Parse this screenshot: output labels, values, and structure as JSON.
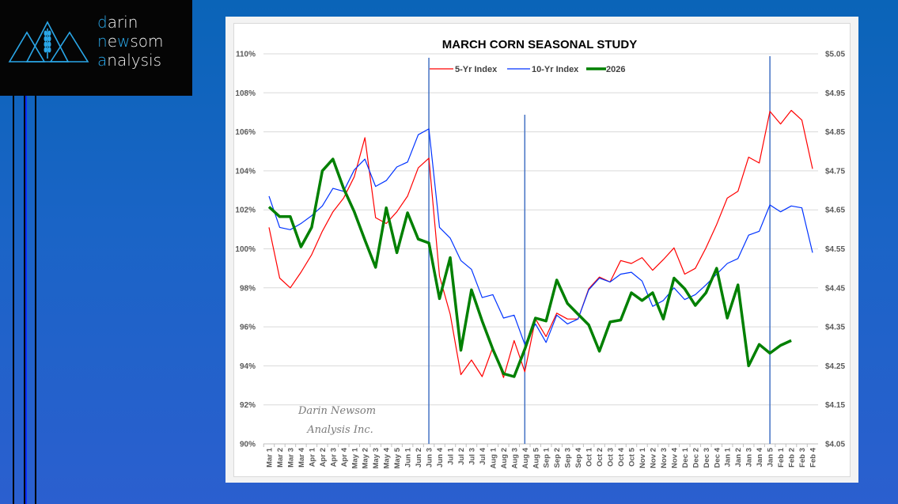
{
  "logo": {
    "line1": {
      "accent": "d",
      "rest": "arin"
    },
    "line2": {
      "accent1": "n",
      "mid1": "e",
      "accent2": "w",
      "rest": "som"
    },
    "line3": {
      "accent": "a",
      "rest": "nalysis"
    },
    "icon": "mountains-wheat-icon",
    "accent_color": "#2aa7e8"
  },
  "colors": {
    "five_yr": "#ff0000",
    "ten_yr": "#0033ff",
    "y2026": "#008000",
    "marker_line": "#4472c4"
  },
  "chart_data": {
    "type": "line",
    "title": "MARCH CORN SEASONAL STUDY",
    "xlabel": "",
    "ylabel": "",
    "ylim": [
      90,
      110
    ],
    "y_ticks": [
      "110%",
      "108%",
      "106%",
      "104%",
      "102%",
      "100%",
      "98%",
      "96%",
      "94%",
      "92%",
      "90%"
    ],
    "y2lim": [
      4.05,
      5.05
    ],
    "y2_ticks": [
      "$5.05",
      "$4.95",
      "$4.85",
      "$4.75",
      "$4.65",
      "$4.55",
      "$4.45",
      "$4.35",
      "$4.25",
      "$4.15",
      "$4.05"
    ],
    "grid": true,
    "legend_position": "top-center",
    "categories": [
      "Mar 1",
      "Mar 2",
      "Mar 3",
      "Mar 4",
      "Apr 1",
      "Apr 2",
      "Apr 3",
      "Apr 4",
      "May 1",
      "May 2",
      "May 3",
      "May 4",
      "May 5",
      "Jun 1",
      "Jun 2",
      "Jun 3",
      "Jun 4",
      "Jul 1",
      "Jul 2",
      "Jul 3",
      "Jul 4",
      "Aug 1",
      "Aug 2",
      "Aug 3",
      "Aug 4",
      "Aug 5",
      "Sep 1",
      "Sep 2",
      "Sep 3",
      "Sep 4",
      "Oct 1",
      "Oct 2",
      "Oct 3",
      "Oct 4",
      "Oct 5",
      "Nov 1",
      "Nov 2",
      "Nov 3",
      "Nov 4",
      "Dec 1",
      "Dec 2",
      "Dec 3",
      "Dec 4",
      "Jan 1",
      "Jan 2",
      "Jan 3",
      "Jan 4",
      "Jan 5",
      "Feb 1",
      "Feb 2",
      "Feb 3",
      "Feb 4"
    ],
    "series": [
      {
        "name": "5-Yr Index",
        "axis": "left",
        "values": [
          101.1,
          98.5,
          98.0,
          98.8,
          99.7,
          100.9,
          101.9,
          102.6,
          103.7,
          105.7,
          101.6,
          101.3,
          101.9,
          102.7,
          104.15,
          104.65,
          98.6,
          96.65,
          93.55,
          94.3,
          93.45,
          94.95,
          93.4,
          95.3,
          93.7,
          96.4,
          95.5,
          96.7,
          96.4,
          96.4,
          97.95,
          98.55,
          98.3,
          99.4,
          99.25,
          99.55,
          98.9,
          99.45,
          100.05,
          98.7,
          99.0,
          100.05,
          101.25,
          102.6,
          102.95,
          104.7,
          104.4,
          107.05,
          106.4,
          107.1,
          106.6,
          104.1
        ]
      },
      {
        "name": "10-Yr Index",
        "axis": "left",
        "values": [
          102.7,
          101.1,
          100.98,
          101.3,
          101.7,
          102.2,
          103.1,
          102.95,
          104.05,
          104.6,
          103.2,
          103.5,
          104.2,
          104.45,
          105.85,
          106.15,
          101.1,
          100.55,
          99.4,
          98.95,
          97.5,
          97.65,
          96.45,
          96.6,
          95.1,
          96.15,
          95.2,
          96.6,
          96.15,
          96.4,
          97.9,
          98.5,
          98.3,
          98.7,
          98.8,
          98.35,
          97.05,
          97.35,
          98.0,
          97.4,
          97.65,
          98.15,
          98.7,
          99.25,
          99.5,
          100.7,
          100.9,
          102.25,
          101.9,
          102.2,
          102.1,
          99.8
        ]
      },
      {
        "name": "2026",
        "axis": "right",
        "values": [
          4.6575,
          4.6325,
          4.6325,
          4.555,
          4.605,
          4.75,
          4.78,
          4.705,
          4.645,
          4.5725,
          4.5025,
          4.655,
          4.54,
          4.6425,
          4.575,
          4.565,
          4.4225,
          4.5275,
          4.29,
          4.445,
          4.365,
          4.2925,
          4.23,
          4.2225,
          4.2925,
          4.3725,
          4.365,
          4.47,
          4.41,
          4.3825,
          4.355,
          4.2875,
          4.3625,
          4.3675,
          4.4375,
          4.4175,
          4.4375,
          4.37,
          4.475,
          4.4475,
          4.405,
          4.4375,
          4.5,
          4.3725,
          4.4575,
          4.25,
          4.305,
          4.2825,
          4.3025,
          4.315
        ]
      }
    ],
    "vertical_markers": [
      "Jun 3",
      "Aug 4",
      "Jan 5"
    ],
    "watermark": [
      "Darin Newsom",
      "Analysis Inc."
    ]
  }
}
